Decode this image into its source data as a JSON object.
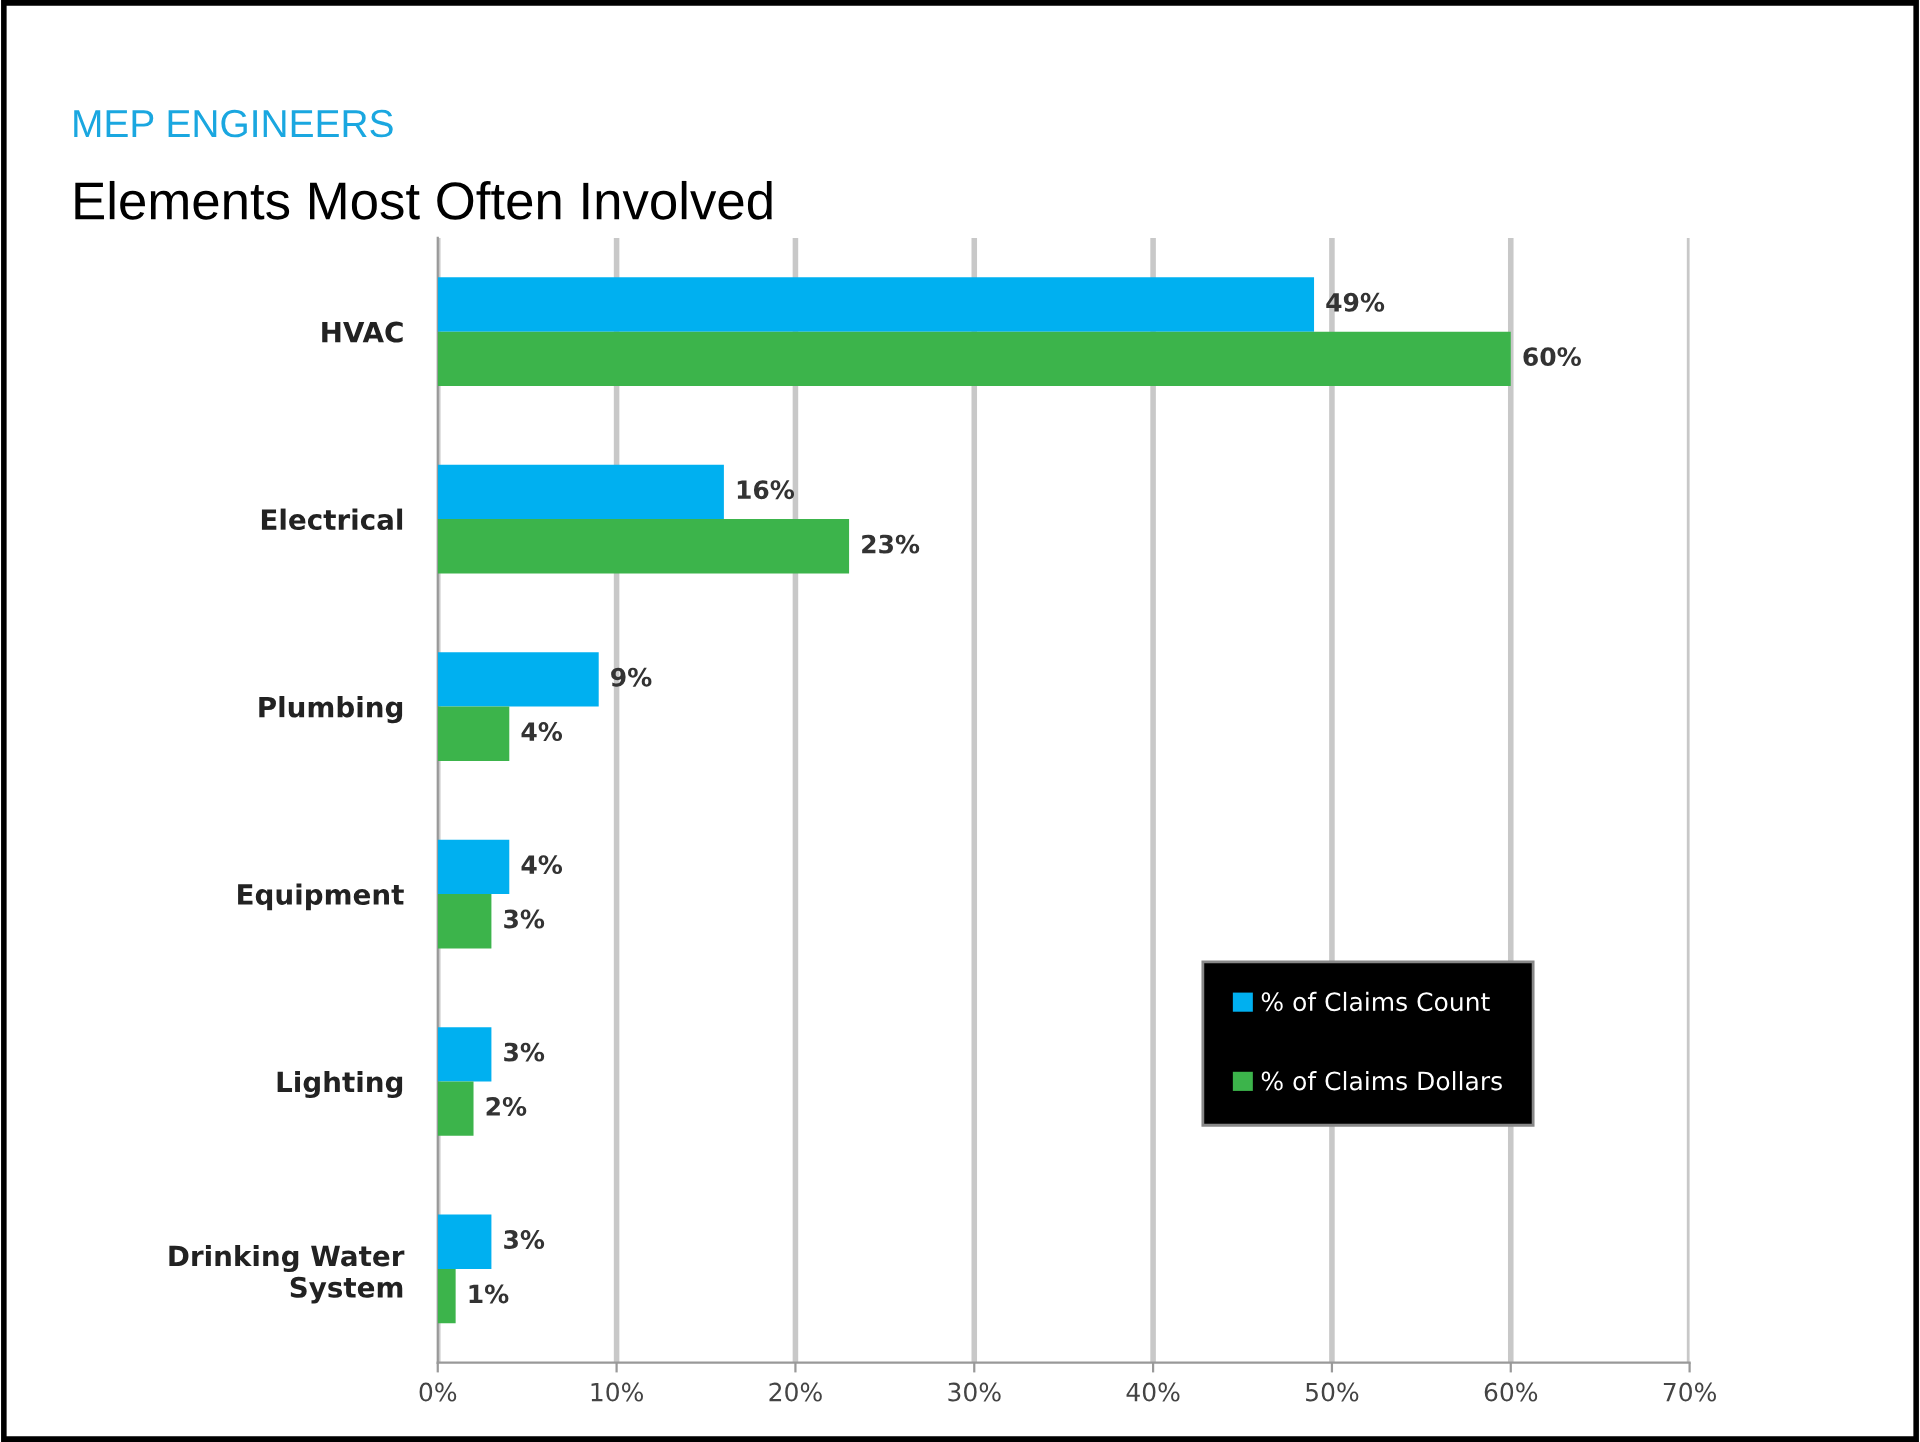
{
  "chart_data": {
    "type": "bar",
    "orientation": "horizontal",
    "subtitle": "MEP ENGINEERS",
    "title": "Elements Most Often Involved",
    "categories": [
      "HVAC",
      "Electrical",
      "Plumbing",
      "Equipment",
      "Lighting",
      "Drinking Water\nSystem"
    ],
    "series": [
      {
        "name": "% of Claims Count",
        "color": "#00b0f0",
        "values": [
          49,
          16,
          9,
          4,
          3,
          3
        ],
        "value_labels": [
          "49%",
          "16%",
          "9%",
          "4%",
          "3%",
          "3%"
        ]
      },
      {
        "name": "% of Claims Dollars",
        "color": "#3cb44b",
        "values": [
          60,
          23,
          4,
          3,
          2,
          1
        ],
        "value_labels": [
          "60%",
          "23%",
          "4%",
          "3%",
          "2%",
          "1%"
        ]
      }
    ],
    "xlim": [
      0,
      70
    ],
    "xticks": [
      {
        "value": 0,
        "label": "0%"
      },
      {
        "value": 10,
        "label": "10%"
      },
      {
        "value": 20,
        "label": "20%"
      },
      {
        "value": 30,
        "label": "30%"
      },
      {
        "value": 40,
        "label": "40%"
      },
      {
        "value": 50,
        "label": "50%"
      },
      {
        "value": 60,
        "label": "60%"
      },
      {
        "value": 70,
        "label": "70%"
      }
    ],
    "grid": "x",
    "legend": "bottom right"
  }
}
